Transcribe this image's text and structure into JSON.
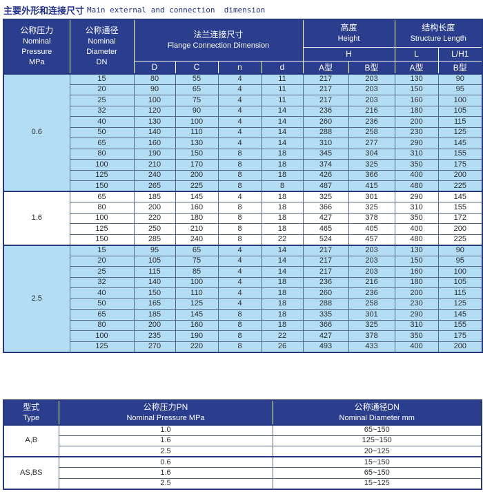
{
  "title": {
    "zh": "主要外形和连接尺寸",
    "en": "Main external and connection  dimension"
  },
  "colors": {
    "header_bg": "#2b3e8d",
    "light_row_bg": "#b3ddf4",
    "white_row_bg": "#ffffff",
    "title_text": "#1e2f8a",
    "grid_line": "#546787",
    "outer_border": "#26387e",
    "cell_text": "#2b2b2b"
  },
  "main_table": {
    "headers": {
      "pressure": {
        "zh": "公称压力",
        "en1": "Nominal",
        "en2": "Pressure",
        "en3": "MPa"
      },
      "diameter": {
        "zh": "公称通径",
        "en1": "Nominal",
        "en2": "Diameter",
        "en3": "DN"
      },
      "flange": {
        "zh": "法兰连接尺寸",
        "en": "Flange Connection Dimension"
      },
      "flange_cols": [
        "D",
        "C",
        "n",
        "d"
      ],
      "height": {
        "zh": "高度",
        "en": "Height",
        "sub": "H",
        "cols": [
          "A型",
          "B型"
        ]
      },
      "length": {
        "zh": "结构长度",
        "en": "Structure Length",
        "sub1": "L",
        "sub2": "L/H1",
        "cols": [
          "A型",
          "B型"
        ]
      }
    },
    "groups": [
      {
        "pressure": "0.6",
        "shade": "blue",
        "rows": [
          [
            15,
            80,
            55,
            4,
            11,
            217,
            203,
            130,
            90
          ],
          [
            20,
            90,
            65,
            4,
            11,
            217,
            203,
            150,
            95
          ],
          [
            25,
            100,
            75,
            4,
            11,
            217,
            203,
            160,
            100
          ],
          [
            32,
            120,
            90,
            4,
            14,
            236,
            216,
            180,
            105
          ],
          [
            40,
            130,
            100,
            4,
            14,
            260,
            236,
            200,
            115
          ],
          [
            50,
            140,
            110,
            4,
            14,
            288,
            258,
            230,
            125
          ],
          [
            65,
            160,
            130,
            4,
            14,
            310,
            277,
            290,
            145
          ],
          [
            80,
            190,
            150,
            8,
            18,
            345,
            304,
            310,
            155
          ],
          [
            100,
            210,
            170,
            8,
            18,
            374,
            325,
            350,
            175
          ],
          [
            125,
            240,
            200,
            8,
            18,
            426,
            366,
            400,
            200
          ],
          [
            150,
            265,
            225,
            8,
            8,
            487,
            415,
            480,
            225
          ]
        ]
      },
      {
        "pressure": "1.6",
        "shade": "white",
        "rows": [
          [
            65,
            185,
            145,
            4,
            18,
            325,
            301,
            290,
            145
          ],
          [
            80,
            200,
            160,
            8,
            18,
            366,
            325,
            310,
            155
          ],
          [
            100,
            220,
            180,
            8,
            18,
            427,
            378,
            350,
            172
          ],
          [
            125,
            250,
            210,
            8,
            18,
            465,
            405,
            400,
            200
          ],
          [
            150,
            285,
            240,
            8,
            22,
            524,
            457,
            480,
            225
          ]
        ]
      },
      {
        "pressure": "2.5",
        "shade": "blue",
        "rows": [
          [
            15,
            95,
            65,
            4,
            14,
            217,
            203,
            130,
            90
          ],
          [
            20,
            105,
            75,
            4,
            14,
            217,
            203,
            150,
            95
          ],
          [
            25,
            115,
            85,
            4,
            14,
            217,
            203,
            160,
            100
          ],
          [
            32,
            140,
            100,
            4,
            18,
            236,
            216,
            180,
            105
          ],
          [
            40,
            150,
            110,
            4,
            18,
            260,
            236,
            200,
            115
          ],
          [
            50,
            165,
            125,
            4,
            18,
            288,
            258,
            230,
            125
          ],
          [
            65,
            185,
            145,
            8,
            18,
            335,
            301,
            290,
            145
          ],
          [
            80,
            200,
            160,
            8,
            18,
            366,
            325,
            310,
            155
          ],
          [
            100,
            235,
            190,
            8,
            22,
            427,
            378,
            350,
            175
          ],
          [
            125,
            270,
            220,
            8,
            26,
            493,
            433,
            400,
            200
          ]
        ]
      }
    ]
  },
  "type_table": {
    "headers": {
      "type": {
        "zh": "型式",
        "en": "Type"
      },
      "pn": {
        "zh": "公称压力PN",
        "en": "Nominal Pressure MPa"
      },
      "dn": {
        "zh": "公称通径DN",
        "en": "Nominal Diameter mm"
      }
    },
    "groups": [
      {
        "type": "A,B",
        "rows": [
          [
            "1.0",
            "65~150"
          ],
          [
            "1.6",
            "125~150"
          ],
          [
            "2.5",
            "20~125"
          ]
        ]
      },
      {
        "type": "AS,BS",
        "rows": [
          [
            "0.6",
            "15~150"
          ],
          [
            "1.6",
            "65~150"
          ],
          [
            "2.5",
            "15~125"
          ]
        ]
      }
    ]
  }
}
